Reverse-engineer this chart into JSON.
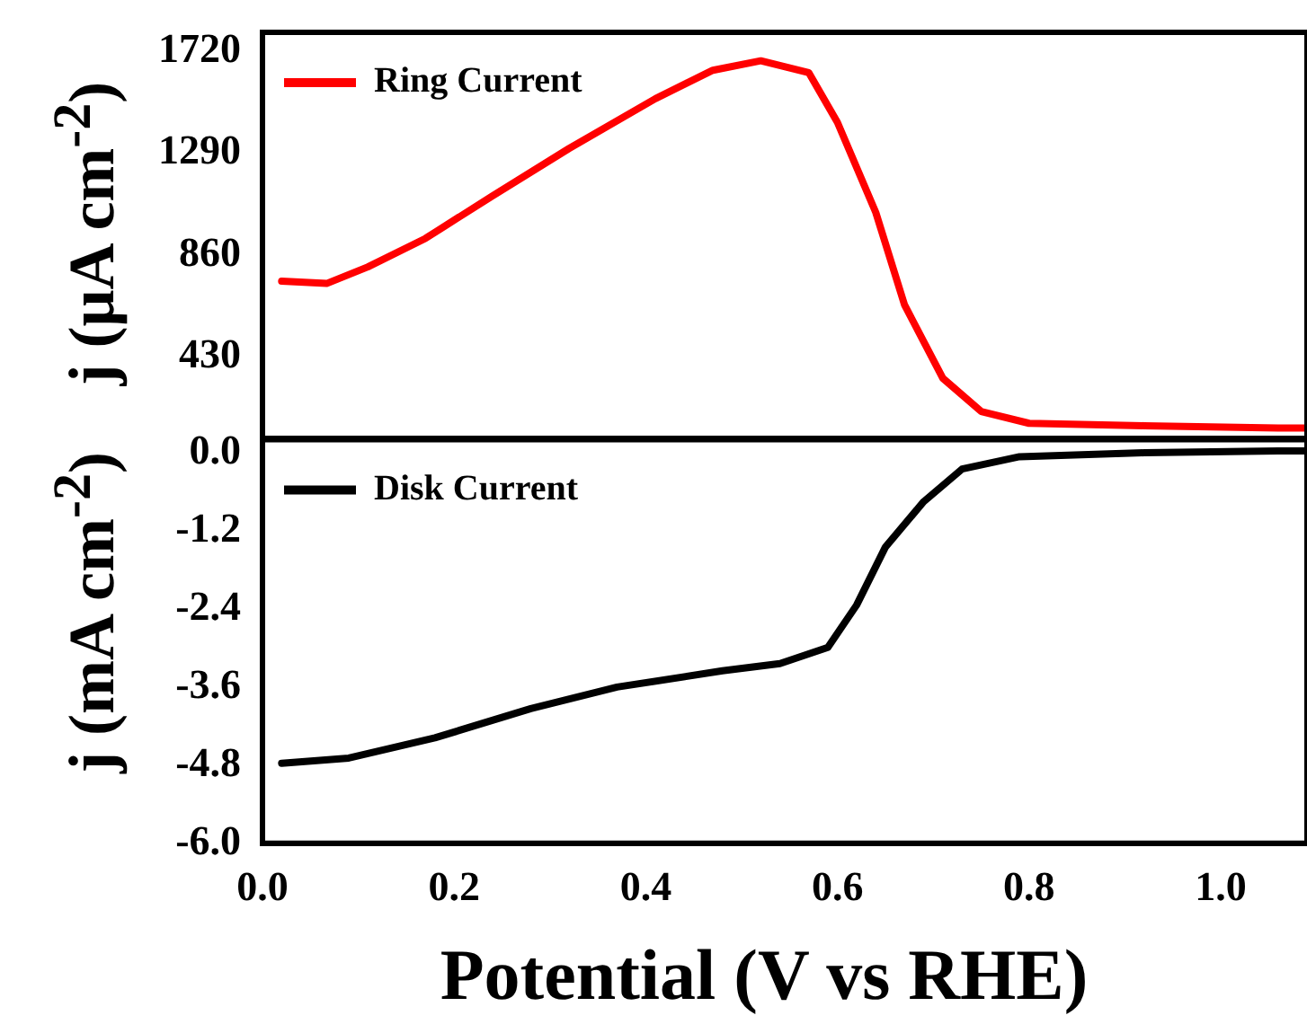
{
  "chart_data": [
    {
      "type": "line",
      "ylabel": "j (μA cm$^{-2}$)",
      "xlim": [
        0,
        1.09
      ],
      "ylim": [
        85,
        1800
      ],
      "yticks": [
        430,
        860,
        1290,
        1720
      ],
      "tick_labels": "y",
      "legend": "top left",
      "grid": false,
      "series": [
        {
          "name": "Ring Current",
          "color": "#ff0000",
          "x": [
            0.02,
            0.067,
            0.11,
            0.17,
            0.24,
            0.32,
            0.41,
            0.47,
            0.52,
            0.57,
            0.6,
            0.64,
            0.67,
            0.71,
            0.75,
            0.8,
            0.92,
            1.06,
            1.09
          ],
          "values": [
            750,
            740,
            810,
            930,
            1110,
            1310,
            1520,
            1640,
            1680,
            1630,
            1420,
            1040,
            650,
            340,
            200,
            150,
            140,
            130,
            130
          ]
        }
      ]
    },
    {
      "type": "line",
      "xlabel": "Potential (V vs RHE)",
      "ylabel": "j (mA cm$^{-2}$)",
      "xlim": [
        0,
        1.09
      ],
      "xticks": [
        {
          "value": 0,
          "label": "0.0"
        },
        0.2,
        0.4,
        0.6,
        0.8,
        {
          "value": 1,
          "label": "1.0"
        }
      ],
      "ylim": [
        -6,
        0.2
      ],
      "yticks": [
        {
          "value": -6,
          "label": "-6.0"
        },
        -4.8,
        -3.6,
        -2.4,
        -1.2,
        {
          "value": 0,
          "label": "0.0"
        }
      ],
      "legend": "top left",
      "grid": false,
      "series": [
        {
          "name": "Disk Current",
          "color": "#000000",
          "x": [
            0.02,
            0.09,
            0.18,
            0.28,
            0.37,
            0.48,
            0.54,
            0.59,
            0.62,
            0.65,
            0.69,
            0.73,
            0.79,
            0.92,
            1.06,
            1.09
          ],
          "values": [
            -4.77,
            -4.69,
            -4.38,
            -3.93,
            -3.6,
            -3.35,
            -3.24,
            -2.99,
            -2.34,
            -1.45,
            -0.75,
            -0.25,
            -0.06,
            0,
            0.03,
            0.03
          ]
        }
      ]
    }
  ]
}
